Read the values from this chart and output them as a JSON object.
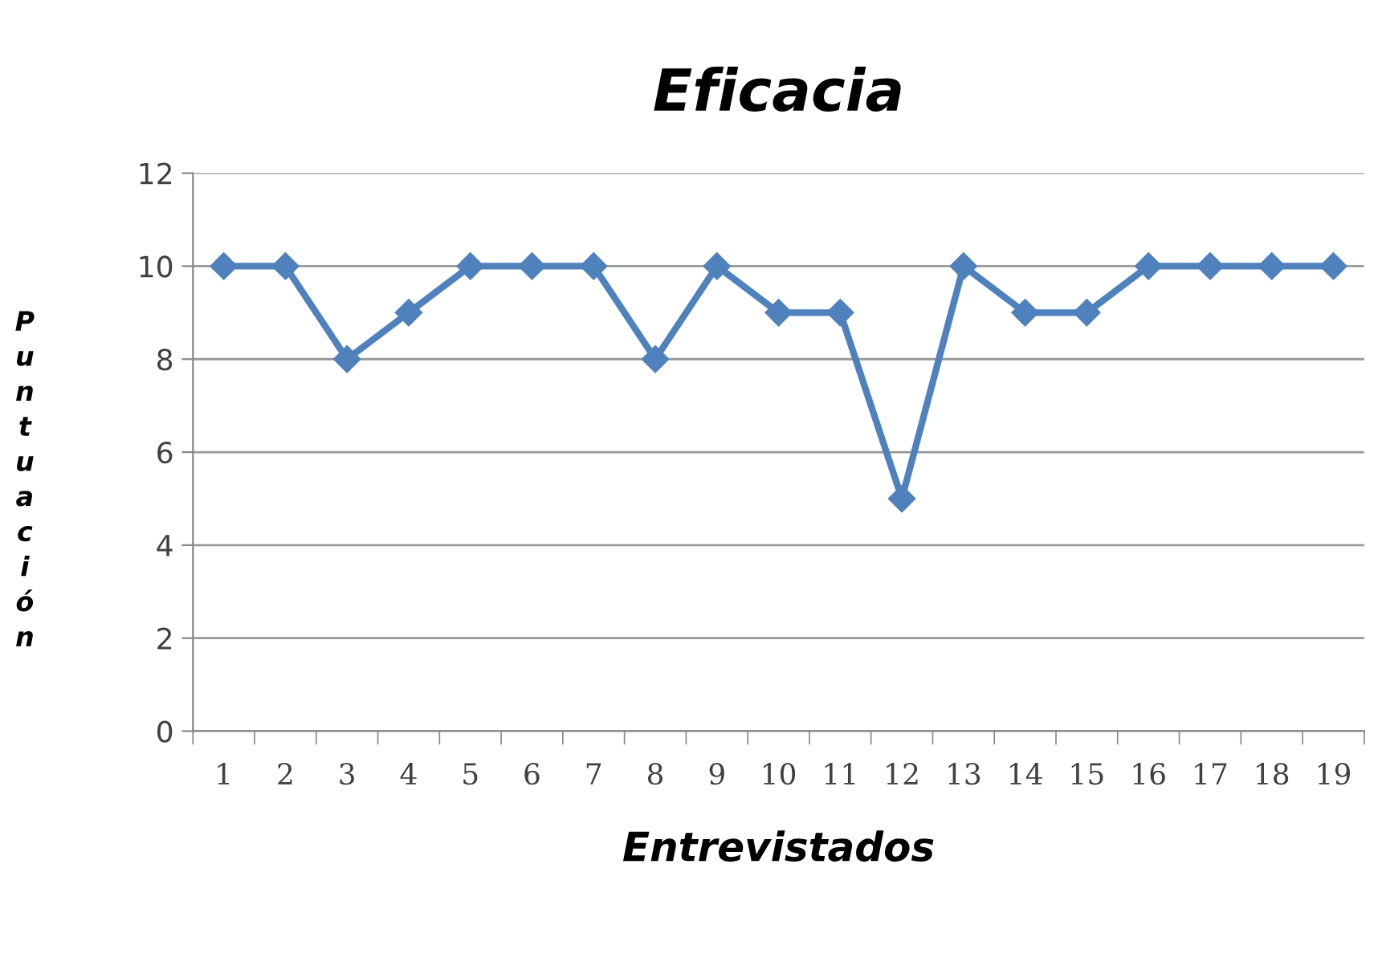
{
  "chart_data": {
    "type": "line",
    "title": "Eficacia",
    "xlabel": "Entrevistados",
    "ylabel": "Puntuación",
    "categories": [
      "1",
      "2",
      "3",
      "4",
      "5",
      "6",
      "7",
      "8",
      "9",
      "10",
      "11",
      "12",
      "13",
      "14",
      "15",
      "16",
      "17",
      "18",
      "19"
    ],
    "series": [
      {
        "color": "#4f81bd",
        "values": [
          10,
          10,
          8,
          9,
          10,
          10,
          10,
          8,
          10,
          9,
          9,
          5,
          10,
          9,
          9,
          10,
          10,
          10,
          10
        ]
      }
    ],
    "ylim": [
      0,
      12
    ],
    "yticks": [
      0,
      2,
      4,
      6,
      8,
      10,
      12
    ],
    "grid": "y",
    "legend": false,
    "marker": "diamond",
    "line_style": "solid"
  }
}
